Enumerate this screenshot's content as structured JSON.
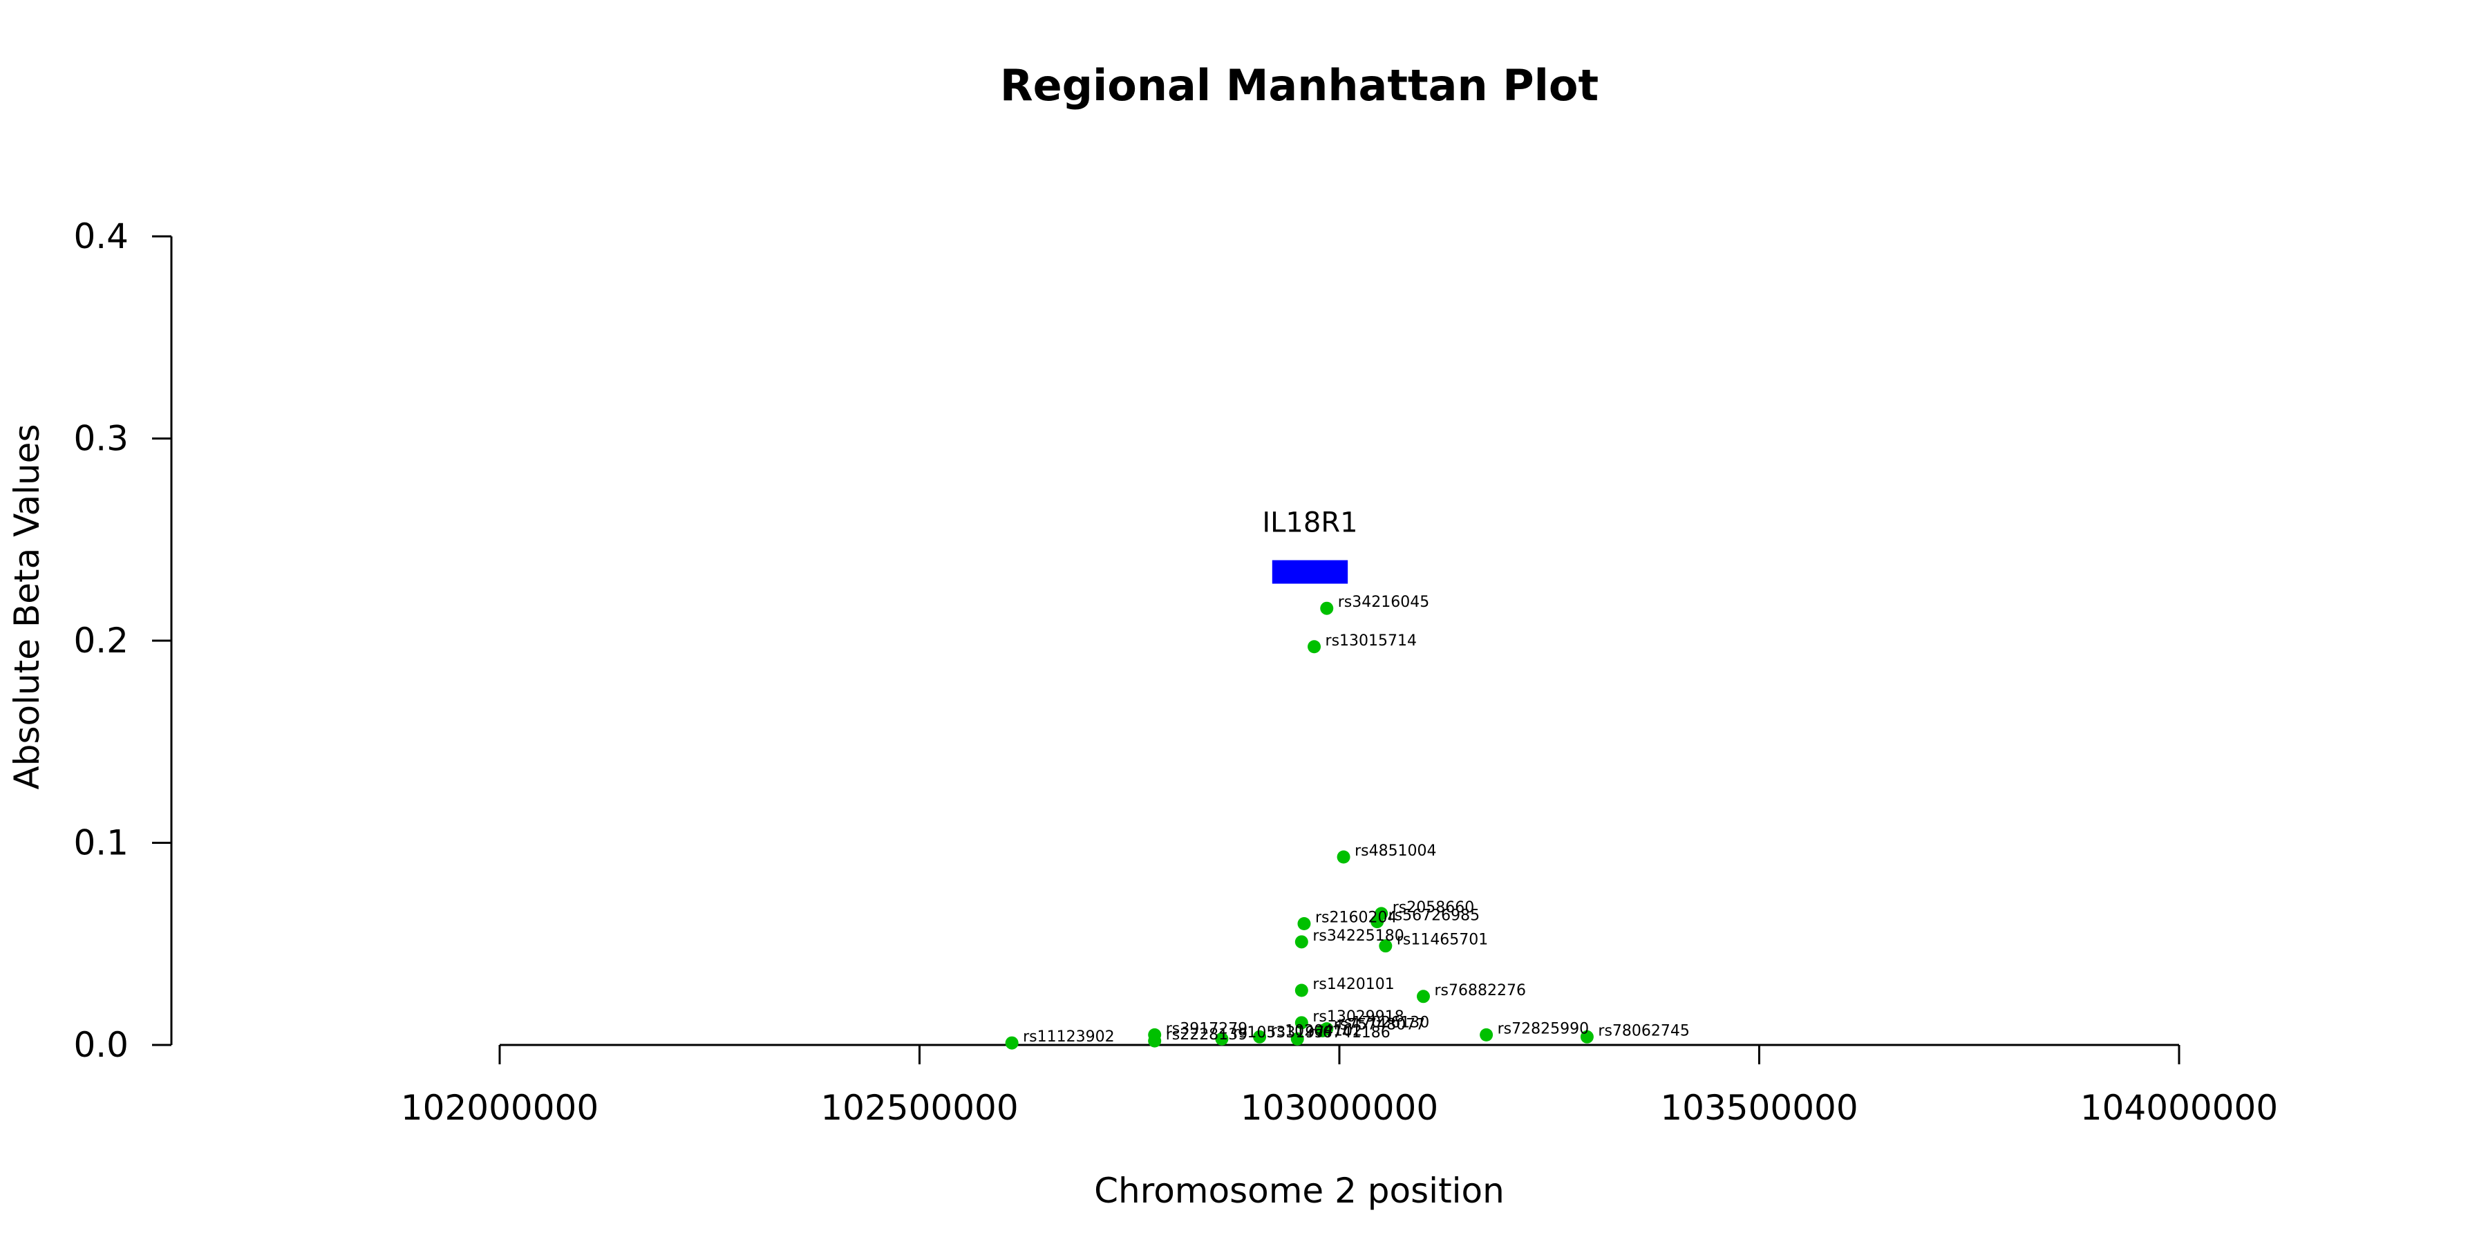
{
  "chart_data": {
    "type": "scatter",
    "title": "Regional Manhattan Plot",
    "xlabel": "Chromosome 2 position",
    "ylabel": "Absolute Beta Values",
    "xlim": [
      102000000,
      104000000
    ],
    "ylim": [
      0,
      0.4
    ],
    "x_ticks": [
      102000000,
      102500000,
      103000000,
      103500000,
      104000000
    ],
    "y_ticks": [
      "0.0",
      "0.1",
      "0.2",
      "0.3",
      "0.4"
    ],
    "point_color": "#00c000",
    "gene": {
      "name": "IL18R1",
      "start": 102920000,
      "end": 103010000,
      "y": 0.234,
      "color": "#0000ff"
    },
    "points": [
      {
        "label": "rs34216045",
        "x": 102985000,
        "y": 0.216
      },
      {
        "label": "rs13015714",
        "x": 102970000,
        "y": 0.197
      },
      {
        "label": "rs4851004",
        "x": 103005000,
        "y": 0.093
      },
      {
        "label": "rs2058660",
        "x": 103050000,
        "y": 0.065
      },
      {
        "label": "rs56726985",
        "x": 103045000,
        "y": 0.061
      },
      {
        "label": "rs2160204",
        "x": 102958000,
        "y": 0.06
      },
      {
        "label": "rs34225180",
        "x": 102955000,
        "y": 0.051
      },
      {
        "label": "rs11465701",
        "x": 103055000,
        "y": 0.049
      },
      {
        "label": "rs1420101",
        "x": 102955000,
        "y": 0.027
      },
      {
        "label": "rs76882276",
        "x": 103100000,
        "y": 0.024
      },
      {
        "label": "rs13029918",
        "x": 102955000,
        "y": 0.011
      },
      {
        "label": "rs17026130",
        "x": 102985000,
        "y": 0.008
      },
      {
        "label": "rs75748077",
        "x": 102980000,
        "y": 0.007
      },
      {
        "label": "rs72825990",
        "x": 103175000,
        "y": 0.005
      },
      {
        "label": "rs78062745",
        "x": 103295000,
        "y": 0.004
      },
      {
        "label": "rs3917279",
        "x": 102780000,
        "y": 0.005
      },
      {
        "label": "rs2228139",
        "x": 102780000,
        "y": 0.002
      },
      {
        "label": "rs105331977",
        "x": 102860000,
        "y": 0.003
      },
      {
        "label": "rs10204102",
        "x": 102905000,
        "y": 0.004
      },
      {
        "label": "rs6741186",
        "x": 102950000,
        "y": 0.003
      },
      {
        "label": "rs11123902",
        "x": 102610000,
        "y": 0.001
      }
    ]
  }
}
